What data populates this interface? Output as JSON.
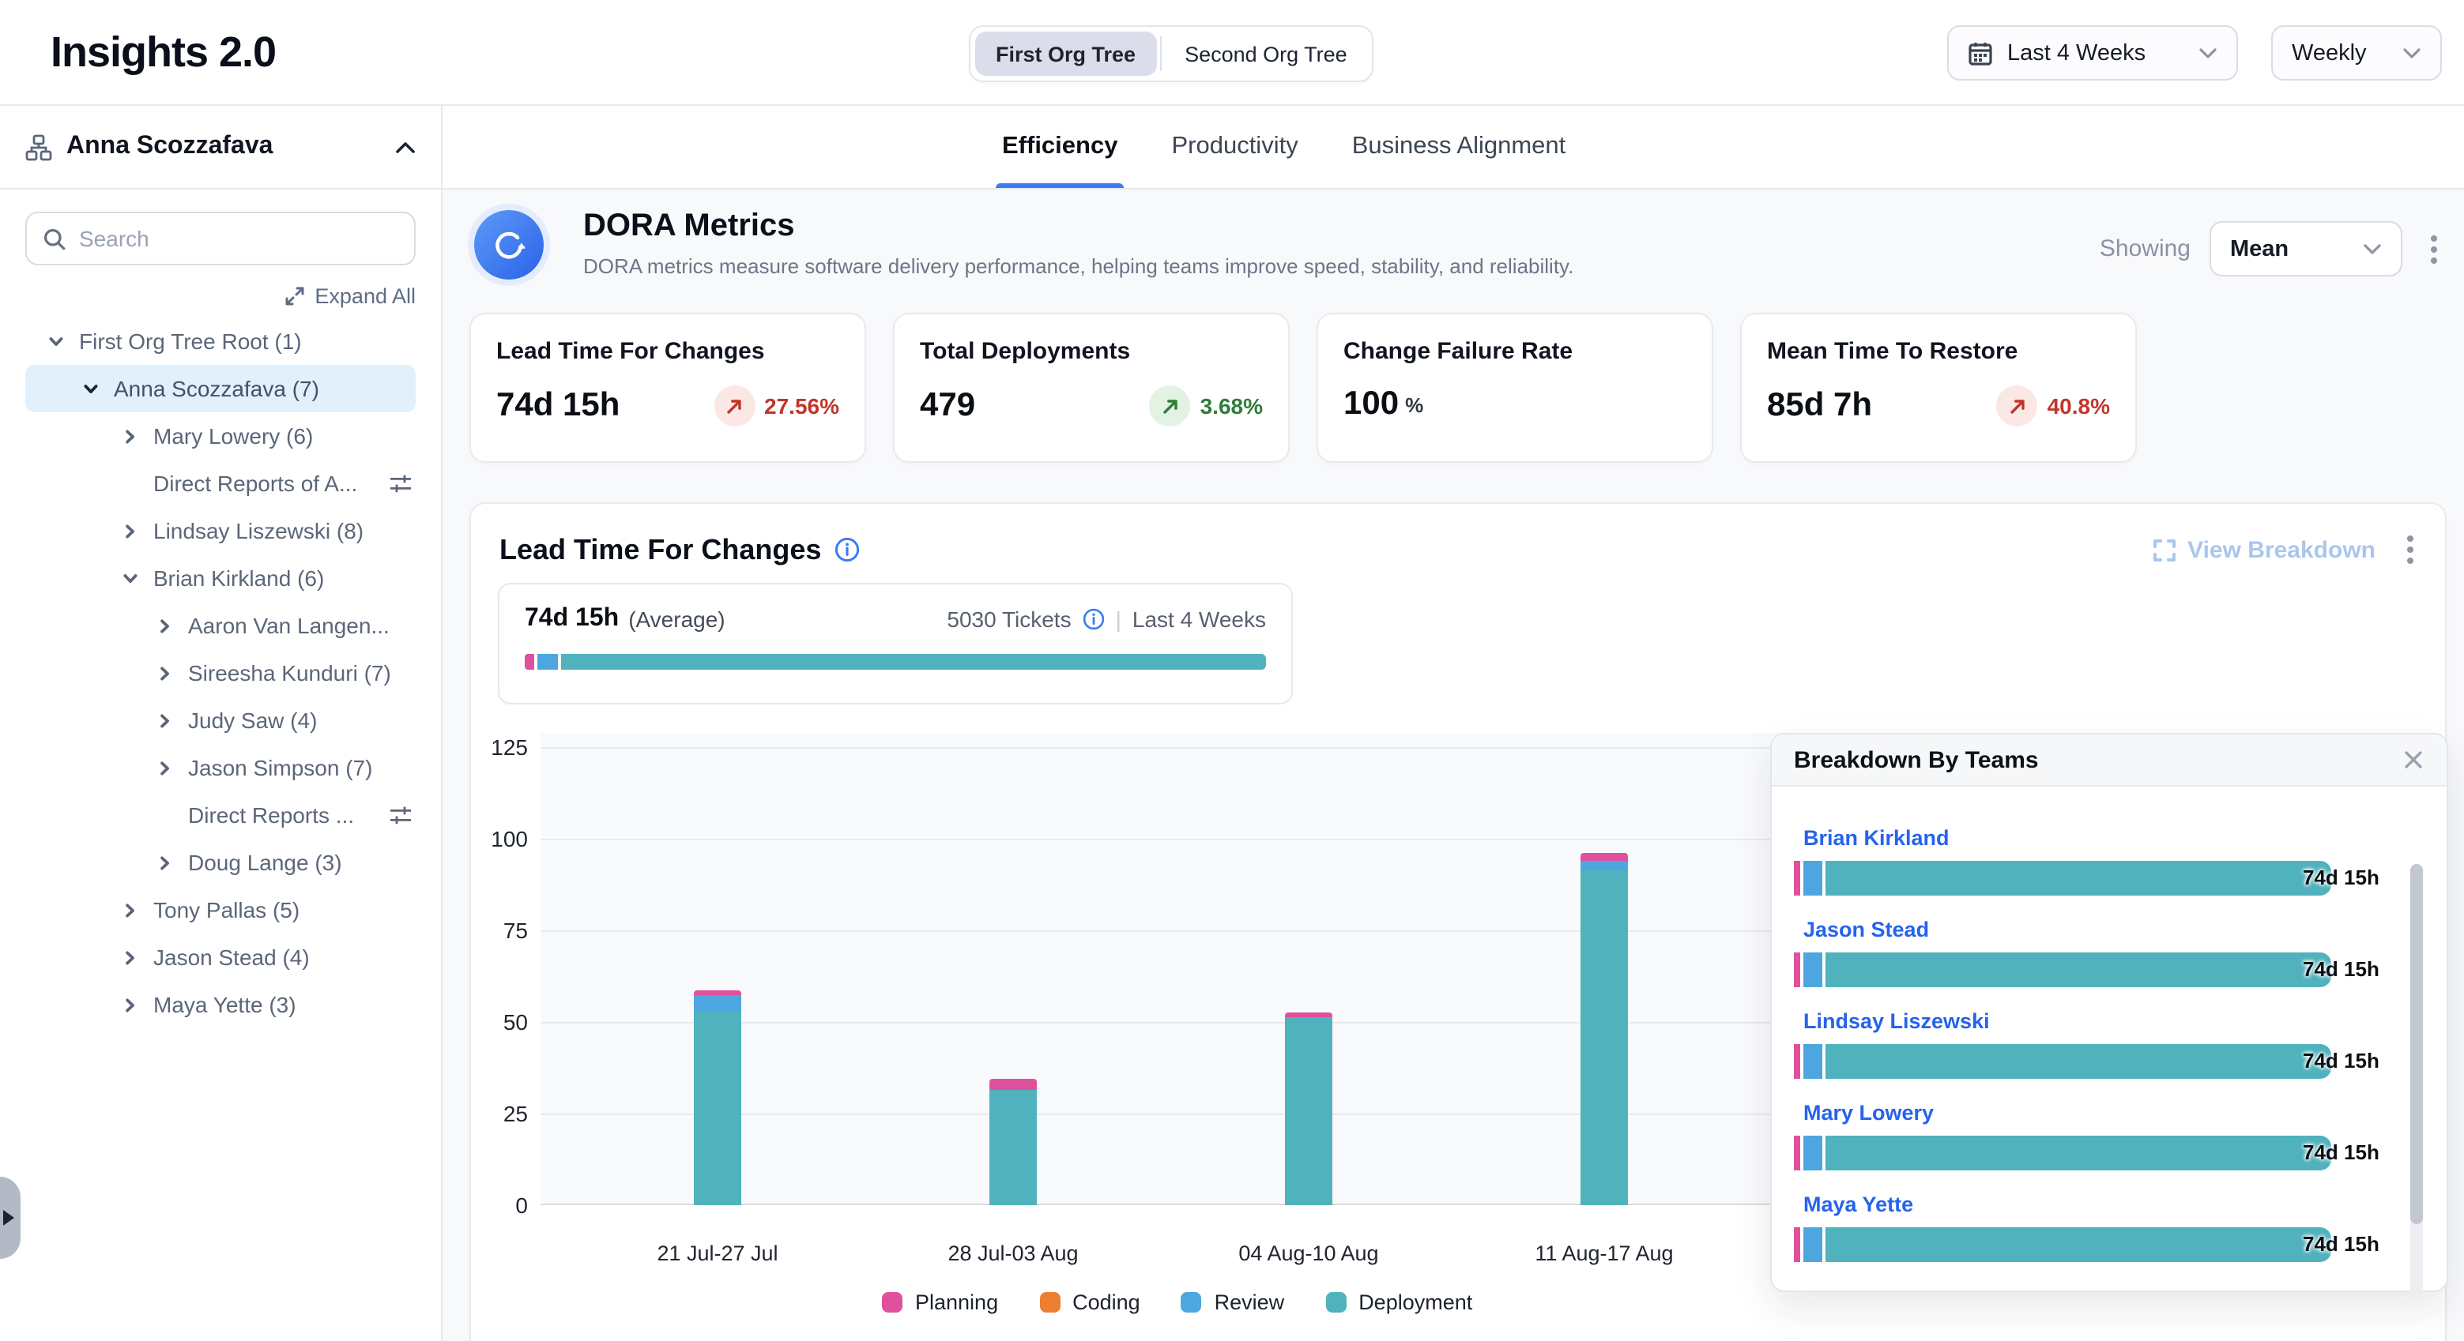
{
  "header": {
    "title": "Insights 2.0",
    "org_tree_toggle": {
      "options": [
        "First Org Tree",
        "Second Org Tree"
      ],
      "active_index": 0
    },
    "date_range_value": "Last 4 Weeks",
    "granularity_value": "Weekly"
  },
  "sidebar": {
    "tree_owner": "Anna Scozzafava",
    "search_placeholder": "Search",
    "expand_all_label": "Expand All",
    "tree": [
      {
        "label": "First Org Tree Root",
        "count": "1",
        "level": 0,
        "chevron": "down"
      },
      {
        "label": "Anna Scozzafava",
        "count": "7",
        "level": 1,
        "chevron": "down",
        "selected": true
      },
      {
        "label": "Mary Lowery",
        "count": "6",
        "level": 2,
        "chevron": "right"
      },
      {
        "label": "Direct Reports of A...",
        "count": null,
        "level": 2,
        "chevron": "none",
        "filter_icon": true
      },
      {
        "label": "Lindsay Liszewski",
        "count": "8",
        "level": 2,
        "chevron": "right"
      },
      {
        "label": "Brian Kirkland",
        "count": "6",
        "level": 2,
        "chevron": "down"
      },
      {
        "label": "Aaron Van Langen...",
        "count": null,
        "level": 3,
        "chevron": "right"
      },
      {
        "label": "Sireesha Kunduri",
        "count": "7",
        "level": 3,
        "chevron": "right"
      },
      {
        "label": "Judy Saw",
        "count": "4",
        "level": 3,
        "chevron": "right"
      },
      {
        "label": "Jason Simpson",
        "count": "7",
        "level": 3,
        "chevron": "right"
      },
      {
        "label": "Direct Reports ...",
        "count": null,
        "level": 3,
        "chevron": "none",
        "filter_icon": true
      },
      {
        "label": "Doug Lange",
        "count": "3",
        "level": 3,
        "chevron": "right"
      },
      {
        "label": "Tony Pallas",
        "count": "5",
        "level": 2,
        "chevron": "right"
      },
      {
        "label": "Jason Stead",
        "count": "4",
        "level": 2,
        "chevron": "right"
      },
      {
        "label": "Maya Yette",
        "count": "3",
        "level": 2,
        "chevron": "right"
      }
    ]
  },
  "tabs": [
    {
      "label": "Efficiency",
      "active": true
    },
    {
      "label": "Productivity",
      "active": false
    },
    {
      "label": "Business Alignment",
      "active": false
    }
  ],
  "dora": {
    "title": "DORA Metrics",
    "description": "DORA metrics measure software delivery performance, helping teams improve speed, stability, and reliability.",
    "showing_label": "Showing",
    "showing_value": "Mean"
  },
  "metric_cards": [
    {
      "title": "Lead Time For Changes",
      "value": "74d 15h",
      "unit": null,
      "change": "27.56%",
      "direction": "up",
      "sentiment": "negative"
    },
    {
      "title": "Total Deployments",
      "value": "479",
      "unit": null,
      "change": "3.68%",
      "direction": "up",
      "sentiment": "positive"
    },
    {
      "title": "Change Failure Rate",
      "value": "100",
      "unit": "%",
      "change": null,
      "direction": null,
      "sentiment": null
    },
    {
      "title": "Mean Time To Restore",
      "value": "85d 7h",
      "unit": null,
      "change": "40.8%",
      "direction": "up",
      "sentiment": "negative"
    }
  ],
  "section": {
    "title": "Lead Time For Changes",
    "view_breakdown_label": "View Breakdown",
    "average": {
      "value": "74d 15h",
      "qualifier": "(Average)",
      "tickets": "5030 Tickets",
      "range": "Last 4 Weeks",
      "segments": [
        {
          "name": "Planning",
          "pct": 1.3
        },
        {
          "name": "Review",
          "pct": 2.8
        },
        {
          "name": "Deployment",
          "pct": 95.9
        }
      ]
    }
  },
  "chart_data": {
    "type": "stacked-bar",
    "title": "Lead Time For Changes",
    "categories": [
      "21 Jul-27 Jul",
      "28 Jul-03 Aug",
      "04 Aug-10 Aug",
      "11 Aug-17 Aug"
    ],
    "series": [
      {
        "name": "Planning",
        "color": "#E0519D",
        "values": [
          1,
          3,
          1,
          2
        ]
      },
      {
        "name": "Coding",
        "color": "#ED7D31",
        "values": [
          0,
          0,
          0,
          0
        ]
      },
      {
        "name": "Review",
        "color": "#4EA6E0",
        "values": [
          4.5,
          0,
          0,
          2.5
        ]
      },
      {
        "name": "Deployment",
        "color": "#50B2BC",
        "values": [
          53,
          31.5,
          51.5,
          91.5
        ]
      }
    ],
    "ylim": [
      0,
      125
    ],
    "yticks": [
      0,
      25,
      50,
      75,
      100,
      125
    ],
    "grid": true,
    "legend_position": "bottom"
  },
  "breakdown": {
    "title": "Breakdown By Teams",
    "segment_pcts": [
      {
        "name": "Planning",
        "pct": 1.2
      },
      {
        "name": "Review",
        "pct": 3.5
      },
      {
        "name": "Deployment",
        "pct": 95.3
      }
    ],
    "rows": [
      {
        "name": "Brian Kirkland",
        "value": "74d 15h"
      },
      {
        "name": "Jason Stead",
        "value": "74d 15h"
      },
      {
        "name": "Lindsay Liszewski",
        "value": "74d 15h"
      },
      {
        "name": "Mary Lowery",
        "value": "74d 15h"
      },
      {
        "name": "Maya Yette",
        "value": "74d 15h"
      }
    ]
  },
  "colors": {
    "stages": {
      "Planning": "#E0519D",
      "Coding": "#ED7D31",
      "Review": "#4EA6E0",
      "Deployment": "#50B2BC"
    },
    "accent_blue": "#3C7BF6",
    "link_blue": "#2563EB",
    "negative": "#C0362C",
    "positive": "#2F7D39",
    "selected_row_bg": "#E2F0FB"
  }
}
